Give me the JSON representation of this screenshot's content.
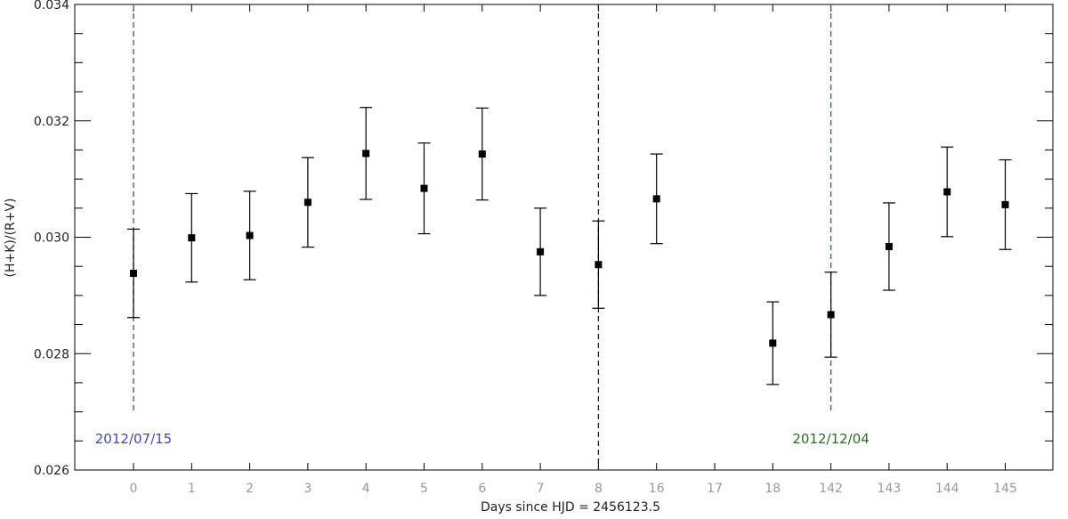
{
  "chart_data": {
    "type": "scatter",
    "title": "",
    "xlabel": "Days since HJD = 2456123.5",
    "ylabel": "(H+K)/(R+V)",
    "ylim": [
      0.026,
      0.034
    ],
    "yticks": [
      "0.026",
      "0.028",
      "0.030",
      "0.032",
      "0.034"
    ],
    "categories": [
      "0",
      "1",
      "2",
      "3",
      "4",
      "5",
      "6",
      "7",
      "8",
      "16",
      "17",
      "18",
      "142",
      "143",
      "144",
      "145"
    ],
    "points": [
      {
        "x": "0",
        "y": 0.02938,
        "err": 0.00076
      },
      {
        "x": "1",
        "y": 0.02999,
        "err": 0.00076
      },
      {
        "x": "2",
        "y": 0.03003,
        "err": 0.00076
      },
      {
        "x": "3",
        "y": 0.0306,
        "err": 0.00077
      },
      {
        "x": "4",
        "y": 0.03144,
        "err": 0.00079
      },
      {
        "x": "5",
        "y": 0.03084,
        "err": 0.00078
      },
      {
        "x": "6",
        "y": 0.03143,
        "err": 0.00079
      },
      {
        "x": "7",
        "y": 0.02975,
        "err": 0.00075
      },
      {
        "x": "8",
        "y": 0.02953,
        "err": 0.00075
      },
      {
        "x": "16",
        "y": 0.03066,
        "err": 0.00077
      },
      {
        "x": "18",
        "y": 0.02818,
        "err": 0.00071
      },
      {
        "x": "142",
        "y": 0.02867,
        "err": 0.00073
      },
      {
        "x": "143",
        "y": 0.02984,
        "err": 0.00075
      },
      {
        "x": "144",
        "y": 0.03078,
        "err": 0.00077
      },
      {
        "x": "145",
        "y": 0.03056,
        "err": 0.00077
      }
    ],
    "vlines": [
      {
        "x": "0",
        "color": "#4444cc",
        "style": "dashed",
        "label": "2012/07/15"
      },
      {
        "x": "8",
        "color": "#222222",
        "style": "dashed",
        "label": ""
      },
      {
        "x": "142",
        "color": "#2a6e2a",
        "style": "dashed",
        "label": "2012/12/04"
      }
    ],
    "grid": false,
    "marker": "square",
    "marker_color": "#000000",
    "tick_label_color": "#9a9a9a"
  }
}
